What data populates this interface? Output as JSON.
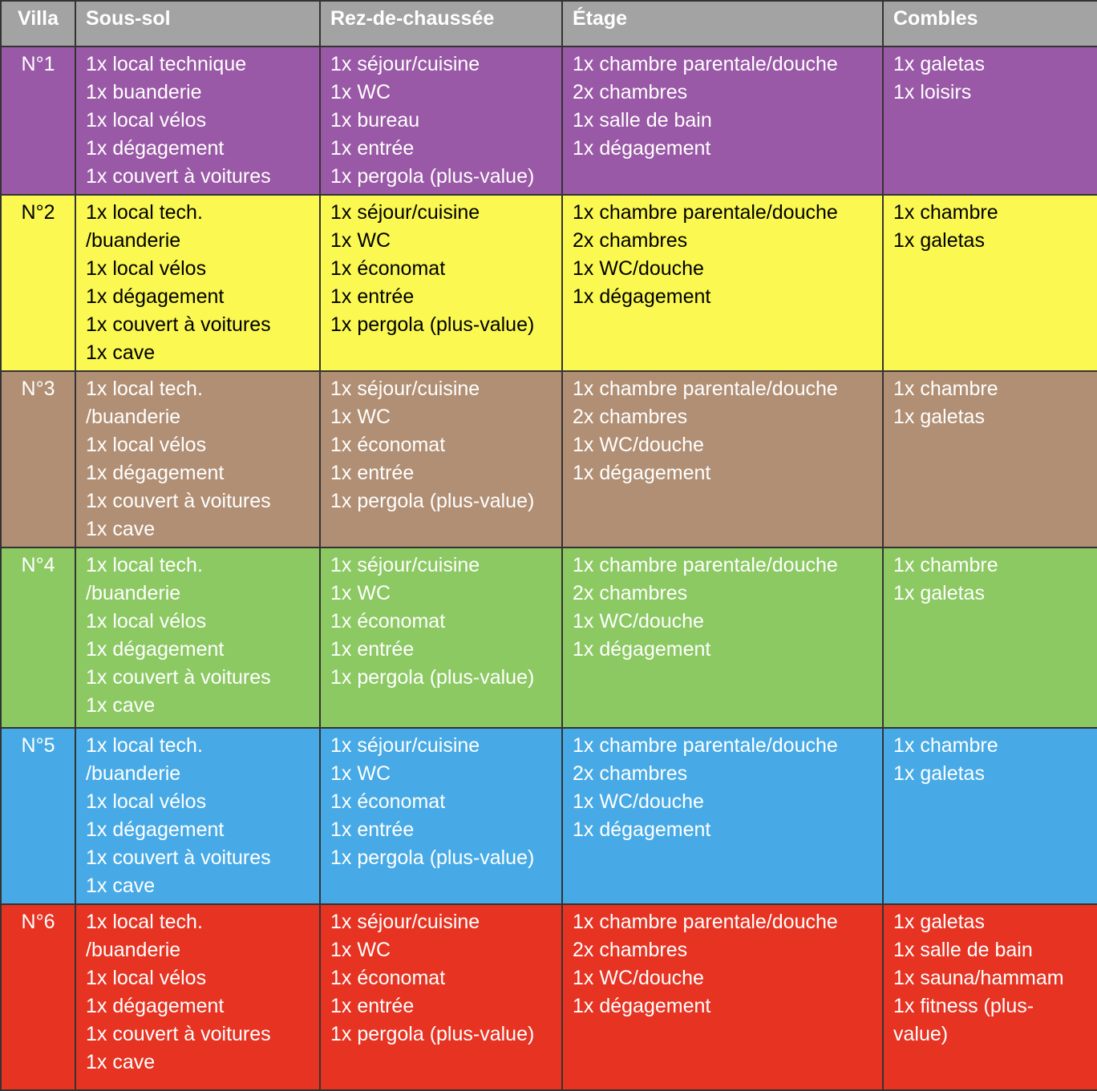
{
  "table": {
    "header_bg": "#a3a3a3",
    "header_text_color": "#ffffff",
    "border_color": "#333333",
    "columns": [
      {
        "label": "Villa"
      },
      {
        "label": "Sous-sol"
      },
      {
        "label": "Rez-de-chaussée"
      },
      {
        "label": "Étage"
      },
      {
        "label": "Combles"
      }
    ],
    "rows": [
      {
        "villa": "N°1",
        "bg": "#9a59a6",
        "text_color": "#ffffff",
        "cells": {
          "sous_sol": [
            "1x local technique",
            "1x buanderie",
            "1x local vélos",
            "1x dégagement",
            "1x couvert à voitures"
          ],
          "rez_de_chaussee": [
            "1x séjour/cuisine",
            "1x WC",
            "1x bureau",
            "1x entrée",
            "1x pergola (plus-value)"
          ],
          "etage": [
            "1x chambre parentale/douche",
            "2x chambres",
            "1x salle de bain",
            "1x dégagement"
          ],
          "combles": [
            "1x galetas",
            "1x loisirs"
          ]
        }
      },
      {
        "villa": "N°2",
        "bg": "#faf851",
        "text_color": "#000000",
        "cells": {
          "sous_sol": [
            "1x local tech.",
            "/buanderie",
            "1x local vélos",
            "1x dégagement",
            "1x couvert à voitures",
            "1x cave"
          ],
          "rez_de_chaussee": [
            "1x séjour/cuisine",
            "1x WC",
            "1x économat",
            "1x entrée",
            "1x pergola (plus-value)"
          ],
          "etage": [
            "1x chambre parentale/douche",
            "2x chambres",
            "1x WC/douche",
            "1x dégagement"
          ],
          "combles": [
            "1x chambre",
            "1x galetas"
          ]
        }
      },
      {
        "villa": "N°3",
        "bg": "#b18f74",
        "text_color": "#ffffff",
        "cells": {
          "sous_sol": [
            "1x local tech.",
            "/buanderie",
            "1x local vélos",
            "1x dégagement",
            "1x couvert à voitures",
            "1x cave"
          ],
          "rez_de_chaussee": [
            "1x séjour/cuisine",
            "1x WC",
            "1x économat",
            "1x entrée",
            "1x pergola (plus-value)"
          ],
          "etage": [
            "1x chambre parentale/douche",
            "2x chambres",
            "1x WC/douche",
            "1x dégagement"
          ],
          "combles": [
            "1x chambre",
            "1x galetas"
          ]
        }
      },
      {
        "villa": "N°4",
        "bg": "#8cc963",
        "text_color": "#ffffff",
        "cells": {
          "sous_sol": [
            "1x local tech.",
            "/buanderie",
            "1x local vélos",
            "1x dégagement",
            "1x couvert à voitures",
            "1x cave"
          ],
          "rez_de_chaussee": [
            "1x séjour/cuisine",
            "1x WC",
            "1x économat",
            "1x entrée",
            "1x pergola (plus-value)"
          ],
          "etage": [
            "1x chambre parentale/douche",
            "2x chambres",
            "1x WC/douche",
            "1x dégagement"
          ],
          "combles": [
            "1x chambre",
            "1x galetas"
          ]
        }
      },
      {
        "villa": "N°5",
        "bg": "#47aae6",
        "text_color": "#ffffff",
        "cells": {
          "sous_sol": [
            "1x local tech.",
            "/buanderie",
            "1x local vélos",
            "1x dégagement",
            "1x couvert à voitures",
            "1x cave"
          ],
          "rez_de_chaussee": [
            "1x séjour/cuisine",
            "1x WC",
            "1x économat",
            "1x entrée",
            "1x pergola (plus-value)"
          ],
          "etage": [
            "1x chambre parentale/douche",
            "2x chambres",
            "1x WC/douche",
            "1x dégagement"
          ],
          "combles": [
            "1x chambre",
            "1x galetas"
          ]
        }
      },
      {
        "villa": "N°6",
        "bg": "#e63322",
        "text_color": "#ffffff",
        "cells": {
          "sous_sol": [
            "1x local tech.",
            "/buanderie",
            "1x local vélos",
            "1x dégagement",
            "1x couvert à voitures",
            "1x cave"
          ],
          "rez_de_chaussee": [
            "1x séjour/cuisine",
            "1x WC",
            "1x économat",
            "1x entrée",
            "1x pergola (plus-value)"
          ],
          "etage": [
            "1x chambre parentale/douche",
            "2x chambres",
            "1x WC/douche",
            "1x dégagement"
          ],
          "combles": [
            "1x galetas",
            "1x salle de bain",
            "1x sauna/hammam",
            "1x fitness (plus-value)"
          ]
        }
      }
    ]
  }
}
